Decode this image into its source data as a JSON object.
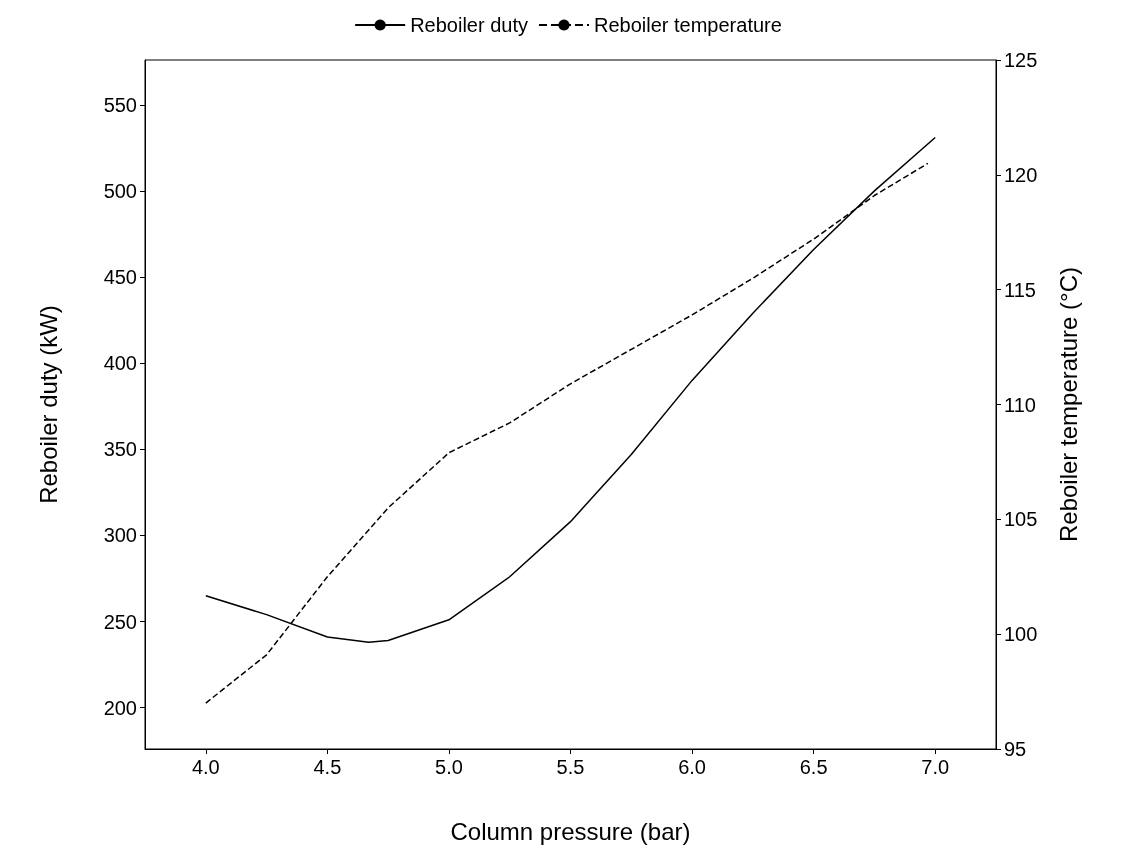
{
  "chart_data": {
    "type": "line",
    "xlabel": "Column pressure (bar)",
    "ylabel": "Reboiler duty (kW)",
    "y2label": "Reboiler temperature (°C)",
    "x": [
      4.0,
      4.25,
      4.5,
      4.67,
      4.75,
      5.0,
      5.25,
      5.5,
      5.75,
      6.0,
      6.25,
      6.5,
      6.75,
      7.0
    ],
    "series": [
      {
        "name": "Reboiler duty",
        "color": "#000000",
        "line_style": "solid",
        "values": [
          265,
          254,
          241,
          238,
          239,
          251,
          276,
          308,
          347,
          390,
          429,
          466,
          500,
          531
        ]
      },
      {
        "name": "Reboiler temperature",
        "color": "#000000",
        "line_style": "dashed",
        "axis": "y2",
        "x": [
          4.0,
          4.25,
          4.5,
          4.75,
          5.0,
          5.25,
          5.5,
          5.75,
          6.0,
          6.25,
          6.5,
          6.75,
          6.97
        ],
        "values": [
          97,
          99.1,
          102.5,
          105.5,
          107.9,
          109.2,
          110.9,
          112.4,
          113.9,
          115.5,
          117.2,
          119.1,
          120.5
        ]
      }
    ],
    "xlim": [
      3.75,
      7.25
    ],
    "xticks": [
      {
        "value": 4,
        "label": "4.0"
      },
      {
        "value": 4.5,
        "label": "4.5"
      },
      {
        "value": 5,
        "label": "5.0"
      },
      {
        "value": 5.5,
        "label": "5.5"
      },
      {
        "value": 6,
        "label": "6.0"
      },
      {
        "value": 6.5,
        "label": "6.5"
      },
      {
        "value": 7,
        "label": "7.0"
      }
    ],
    "ylim": [
      176,
      576
    ],
    "yticks": [
      200,
      250,
      300,
      350,
      400,
      450,
      500,
      550
    ],
    "y2lim": [
      95,
      125
    ],
    "y2ticks": [
      95,
      100,
      105,
      110,
      115,
      120,
      125
    ],
    "grid": false,
    "legend": "top",
    "marker": "none"
  }
}
